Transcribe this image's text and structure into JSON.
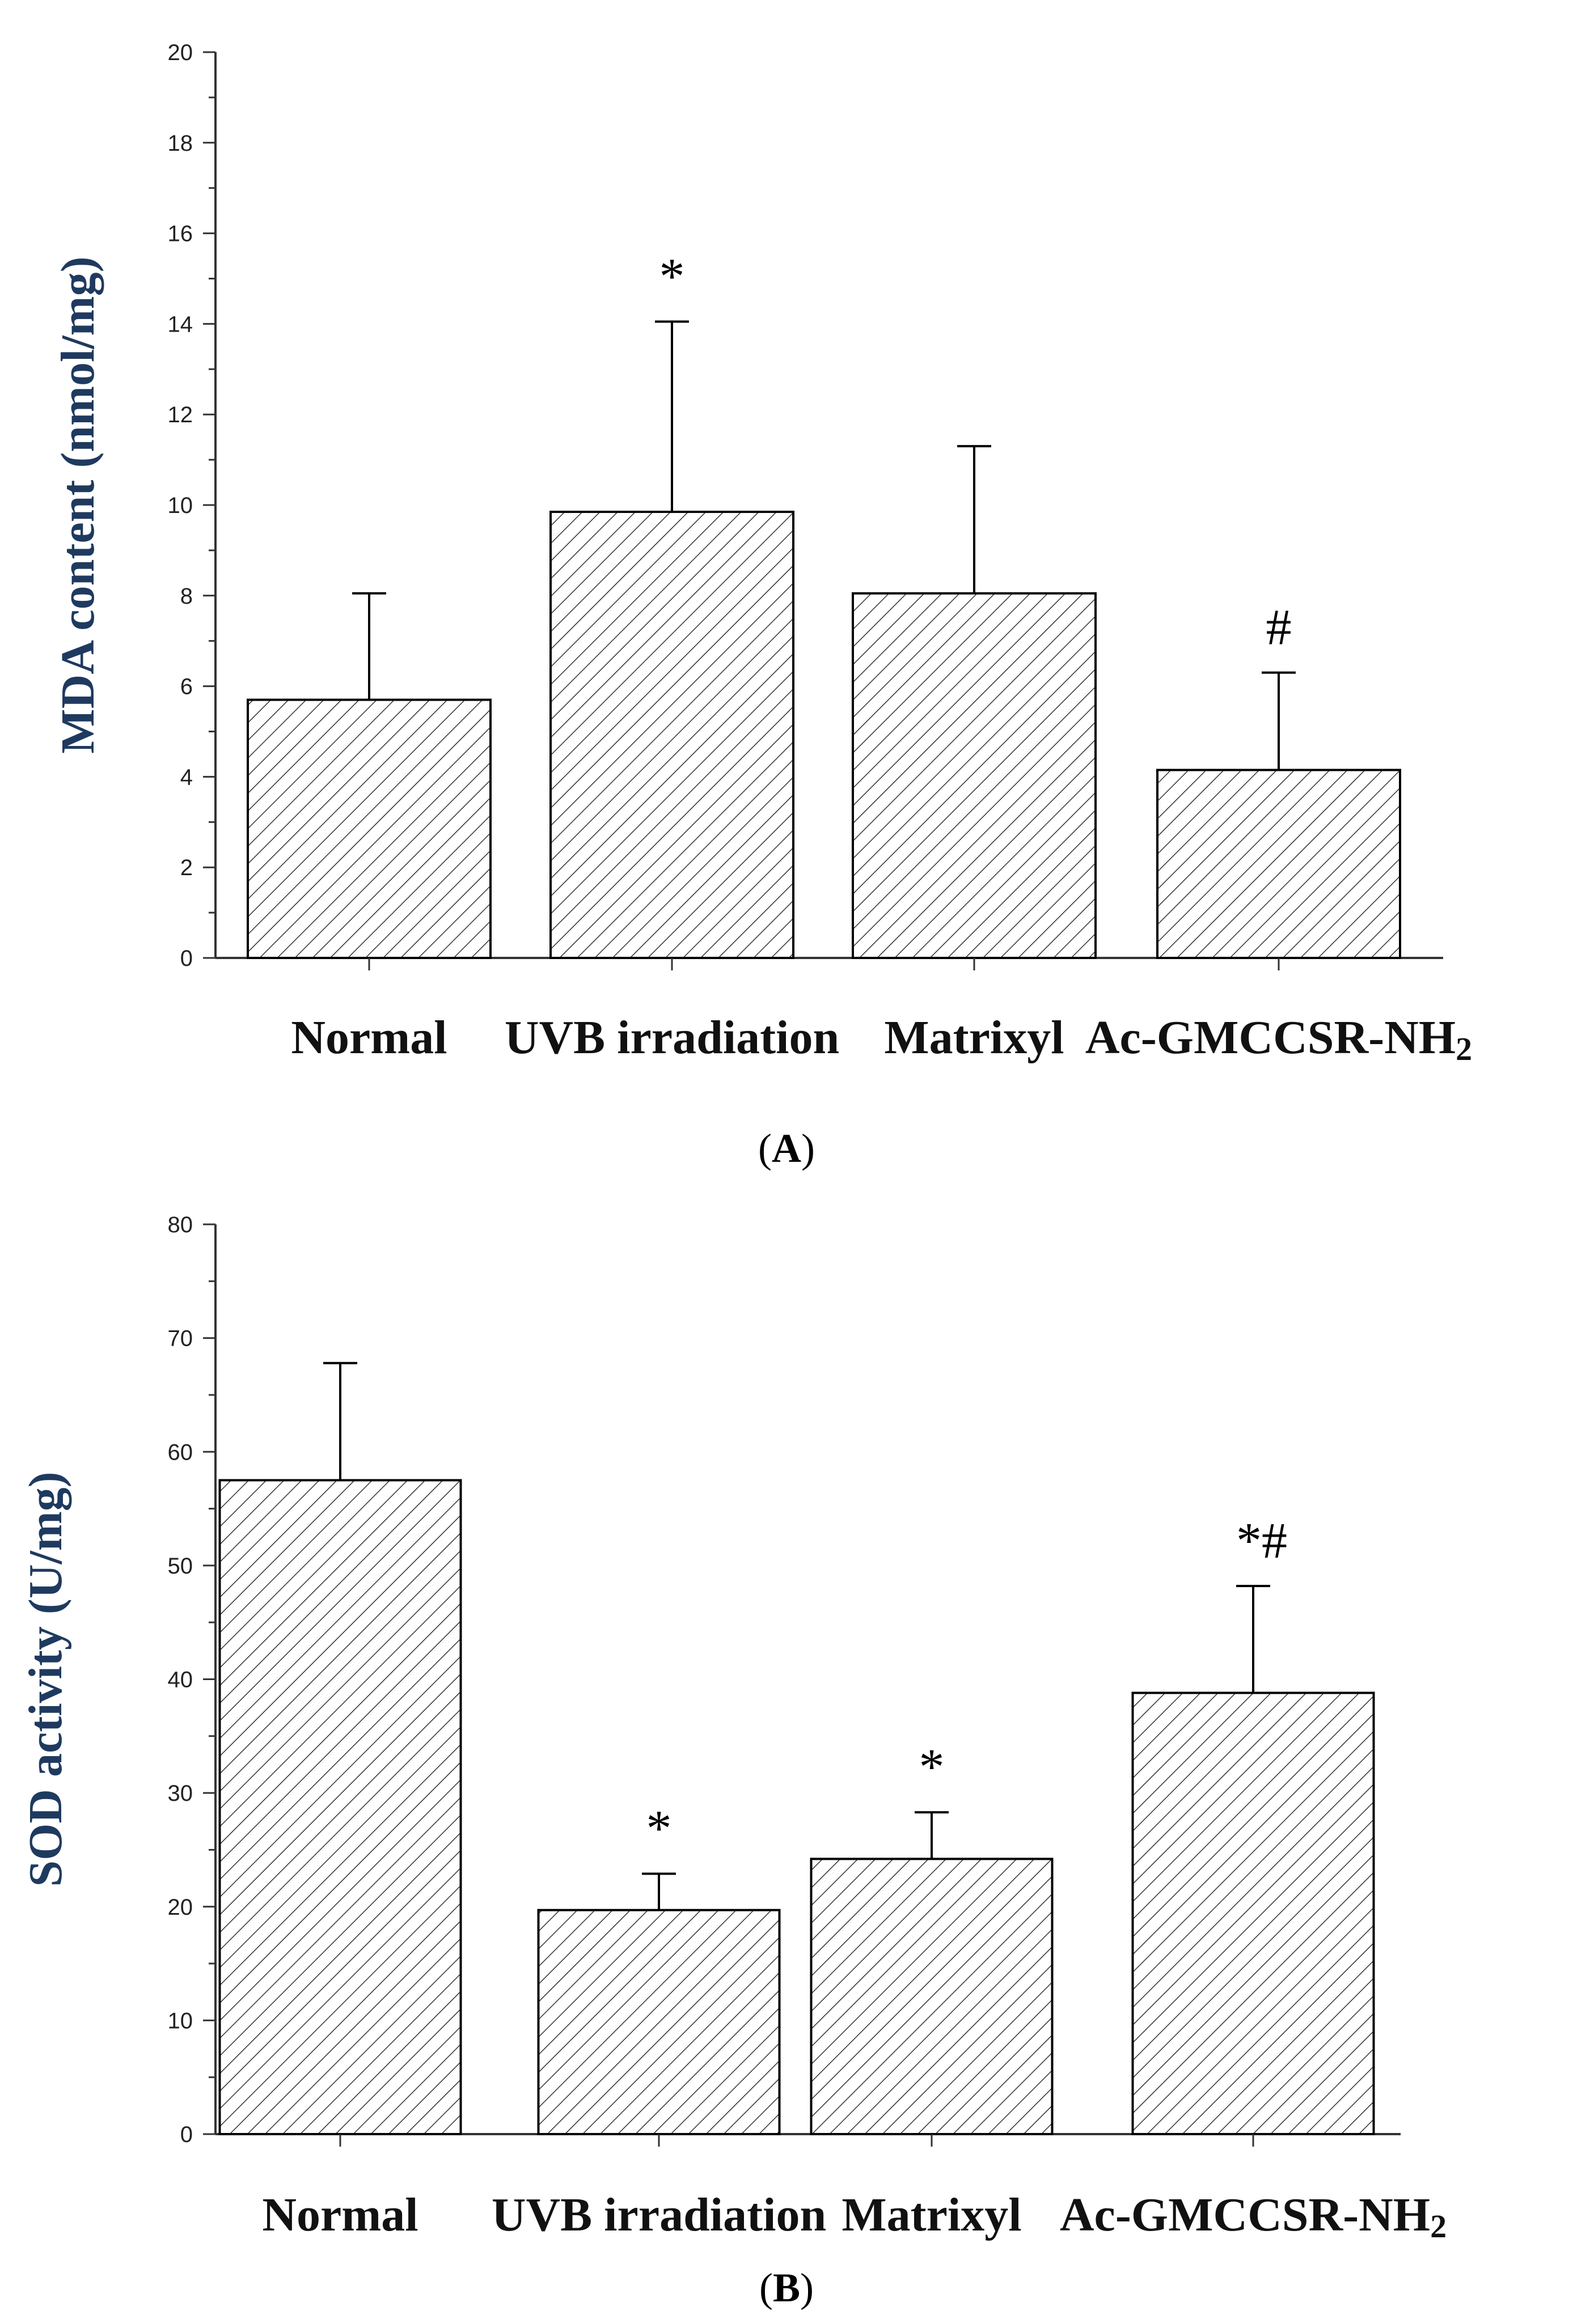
{
  "chart_data": [
    {
      "type": "bar",
      "panel": "A",
      "categories": [
        "Normal",
        "UVB irradiation",
        "Matrixyl",
        "Ac-GMCCSR-NH2"
      ],
      "category_display": [
        {
          "base": "Normal",
          "sub": ""
        },
        {
          "base": "UVB irradiation",
          "sub": ""
        },
        {
          "base": "Matrixyl",
          "sub": ""
        },
        {
          "base": "Ac-GMCCSR-NH",
          "sub": "2"
        }
      ],
      "values": [
        5.7,
        9.85,
        8.05,
        4.15
      ],
      "errors": [
        2.35,
        4.2,
        3.25,
        2.15
      ],
      "annotations": [
        "",
        "*",
        "",
        "#"
      ],
      "ylabel": "MDA content (nmol/mg)",
      "xlabel": "",
      "ylim": [
        0,
        20
      ],
      "yticks": [
        0,
        2,
        4,
        6,
        8,
        10,
        12,
        14,
        16,
        18,
        20
      ],
      "minor_step": 1,
      "bar_fill": "diagonal-hatch",
      "panel_label": "A"
    },
    {
      "type": "bar",
      "panel": "B",
      "categories": [
        "Normal",
        "UVB irradiation",
        "Matrixyl",
        "Ac-GMCCSR-NH2"
      ],
      "category_display": [
        {
          "base": "Normal",
          "sub": ""
        },
        {
          "base": "UVB irradiation",
          "sub": ""
        },
        {
          "base": "Matrixyl",
          "sub": ""
        },
        {
          "base": "Ac-GMCCSR-NH",
          "sub": "2"
        }
      ],
      "values": [
        57.5,
        19.7,
        24.2,
        38.8
      ],
      "errors": [
        10.3,
        3.2,
        4.1,
        9.4
      ],
      "annotations": [
        "",
        "*",
        "*",
        "*#"
      ],
      "ylabel": "SOD activity (U/mg)",
      "xlabel": "",
      "ylim": [
        0,
        80
      ],
      "yticks": [
        0,
        10,
        20,
        30,
        40,
        50,
        60,
        70,
        80
      ],
      "minor_step": 5,
      "bar_fill": "diagonal-hatch",
      "panel_label": "B"
    }
  ],
  "colors": {
    "axis": "#333333",
    "bar_edge": "#000000",
    "hatch": "#333333",
    "ylabel": "#1f3a5f"
  }
}
